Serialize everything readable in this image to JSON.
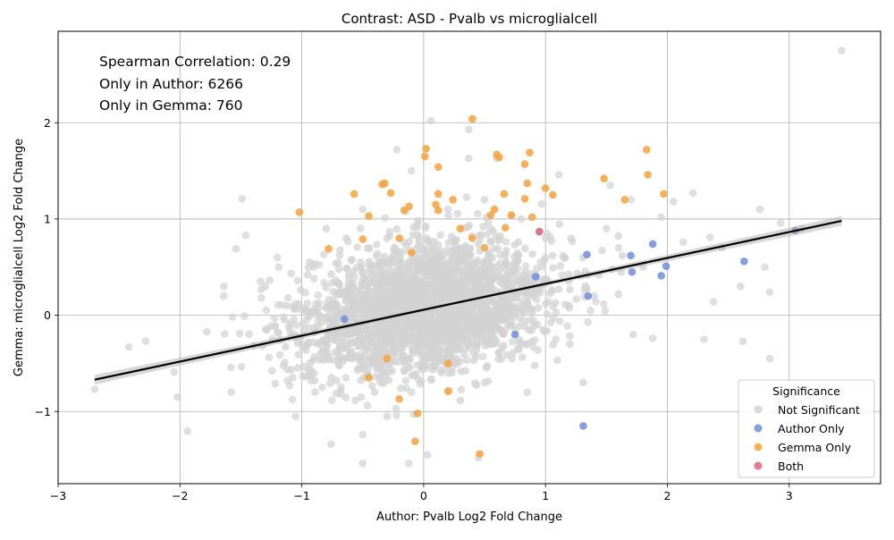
{
  "chart_data": {
    "type": "scatter",
    "title": "Contrast: ASD - Pvalb vs microglialcell",
    "xlabel": "Author: Pvalb Log2 Fold Change",
    "ylabel": "Gemma: microglialcell Log2 Fold Change",
    "xlim": [
      -3.0,
      3.75
    ],
    "ylim": [
      -1.75,
      2.95
    ],
    "xticks": [
      -3,
      -2,
      -1,
      0,
      1,
      2,
      3
    ],
    "yticks": [
      -1,
      0,
      1,
      2
    ],
    "grid": true,
    "annotations": [
      "Spearman Correlation: 0.29",
      "Only in Author: 6266",
      "Only in Gemma: 760"
    ],
    "legend": {
      "title": "Significance",
      "placement": "lower right",
      "entries": [
        {
          "name": "Not Significant",
          "color": "#d3d3d3"
        },
        {
          "name": "Author Only",
          "color": "#6f8fdc"
        },
        {
          "name": "Gemma Only",
          "color": "#f5a23b"
        },
        {
          "name": "Both",
          "color": "#e0627a"
        }
      ]
    },
    "regression": {
      "x": [
        -2.7,
        3.43
      ],
      "y": [
        -0.67,
        0.98
      ],
      "color": "#000000"
    },
    "series": [
      {
        "name": "Not Significant",
        "color": "#d3d3d3",
        "points": [
          [
            3.43,
            2.75
          ],
          [
            0.06,
            2.02
          ],
          [
            0.37,
            1.93
          ],
          [
            -0.22,
            1.72
          ],
          [
            0.37,
            1.63
          ],
          [
            -0.1,
            1.5
          ],
          [
            0.6,
            1.63
          ],
          [
            1.53,
            1.35
          ],
          [
            1.11,
            1.46
          ],
          [
            2.21,
            1.27
          ],
          [
            2.76,
            1.1
          ],
          [
            2.05,
            1.18
          ],
          [
            2.93,
            0.96
          ],
          [
            3.1,
            0.9
          ],
          [
            2.35,
            0.81
          ],
          [
            2.45,
            0.7
          ],
          [
            2.8,
            0.5
          ],
          [
            2.6,
            0.3
          ],
          [
            2.84,
            0.24
          ],
          [
            2.38,
            0.14
          ],
          [
            2.3,
            -0.25
          ],
          [
            2.62,
            -0.27
          ],
          [
            2.84,
            -0.45
          ],
          [
            1.88,
            -0.24
          ],
          [
            1.72,
            -0.2
          ],
          [
            1.31,
            -0.7
          ],
          [
            -1.49,
            1.21
          ],
          [
            -1.46,
            0.83
          ],
          [
            -1.54,
            0.69
          ],
          [
            -1.64,
            0.3
          ],
          [
            -1.64,
            0.2
          ],
          [
            -1.51,
            -0.19
          ],
          [
            -1.47,
            -0.01
          ],
          [
            -1.78,
            -0.17
          ],
          [
            -2.42,
            -0.33
          ],
          [
            -2.28,
            -0.27
          ],
          [
            -2.7,
            -0.77
          ],
          [
            -2.02,
            -0.85
          ],
          [
            -1.58,
            -0.8
          ],
          [
            -1.1,
            -0.73
          ],
          [
            -1.05,
            -1.05
          ],
          [
            -0.76,
            -1.34
          ],
          [
            -0.5,
            -1.24
          ],
          [
            -0.5,
            -1.54
          ],
          [
            -0.12,
            -1.54
          ],
          [
            0.03,
            -1.45
          ],
          [
            0.45,
            -1.48
          ],
          [
            0.85,
            -0.8
          ],
          [
            -0.3,
            -1.05
          ],
          [
            1.5,
            0.9
          ],
          [
            1.6,
            0.7
          ],
          [
            1.8,
            0.5
          ],
          [
            1.4,
            0.2
          ],
          [
            1.2,
            -0.3
          ],
          [
            -0.8,
            0.9
          ],
          [
            -1.2,
            0.6
          ],
          [
            -1.3,
            0.3
          ],
          [
            -1.0,
            -0.3
          ],
          [
            -0.9,
            -0.6
          ],
          [
            0.2,
            1.1
          ],
          [
            0.5,
            1.2
          ],
          [
            0.8,
            1.0
          ],
          [
            1.0,
            0.8
          ],
          [
            -0.5,
            1.1
          ],
          [
            -0.3,
            0.8
          ],
          [
            0.0,
            0.5
          ],
          [
            0.3,
            0.3
          ],
          [
            0.6,
            0.4
          ],
          [
            0.9,
            0.2
          ],
          [
            -0.2,
            0.2
          ],
          [
            -0.5,
            0.3
          ],
          [
            -0.7,
            0.0
          ],
          [
            0.1,
            -0.2
          ],
          [
            0.4,
            -0.3
          ],
          [
            0.7,
            -0.1
          ],
          [
            -0.4,
            -0.4
          ],
          [
            -0.6,
            -0.2
          ],
          [
            0.2,
            -0.6
          ],
          [
            0.5,
            -0.7
          ],
          [
            -0.1,
            -0.8
          ],
          [
            1.7,
            1.2
          ],
          [
            1.95,
            1.02
          ],
          [
            2.13,
            0.76
          ],
          [
            1.62,
            0.45
          ],
          [
            1.0,
            0.6
          ],
          [
            -1.05,
            0.12
          ],
          [
            -0.9,
            0.38
          ],
          [
            0.25,
            0.62
          ],
          [
            0.55,
            0.9
          ],
          [
            -0.2,
            -0.3
          ],
          [
            0.1,
            0.1
          ],
          [
            -0.35,
            0.55
          ],
          [
            0.75,
            0.55
          ]
        ]
      },
      {
        "name": "Author Only",
        "color": "#6f8fdc",
        "points": [
          [
            3.05,
            0.88
          ],
          [
            2.63,
            0.56
          ],
          [
            1.99,
            0.51
          ],
          [
            1.95,
            0.41
          ],
          [
            1.88,
            0.74
          ],
          [
            1.7,
            0.62
          ],
          [
            1.71,
            0.45
          ],
          [
            1.34,
            0.63
          ],
          [
            1.31,
            -1.15
          ],
          [
            1.35,
            0.2
          ],
          [
            0.92,
            0.4
          ],
          [
            0.75,
            -0.2
          ],
          [
            -0.65,
            -0.04
          ]
        ]
      },
      {
        "name": "Gemma Only",
        "color": "#f5a23b",
        "points": [
          [
            0.4,
            2.04
          ],
          [
            0.02,
            1.73
          ],
          [
            0.01,
            1.65
          ],
          [
            0.6,
            1.67
          ],
          [
            0.62,
            1.64
          ],
          [
            0.87,
            1.69
          ],
          [
            0.83,
            1.57
          ],
          [
            1.83,
            1.72
          ],
          [
            1.84,
            1.46
          ],
          [
            1.97,
            1.26
          ],
          [
            1.48,
            1.42
          ],
          [
            1.65,
            1.2
          ],
          [
            0.85,
            1.37
          ],
          [
            1.0,
            1.32
          ],
          [
            1.06,
            1.25
          ],
          [
            0.66,
            1.26
          ],
          [
            0.58,
            1.1
          ],
          [
            0.55,
            1.04
          ],
          [
            0.72,
            1.04
          ],
          [
            0.83,
            1.21
          ],
          [
            0.89,
            1.02
          ],
          [
            0.67,
            0.91
          ],
          [
            0.12,
            1.54
          ],
          [
            0.12,
            1.26
          ],
          [
            0.1,
            1.15
          ],
          [
            0.12,
            1.09
          ],
          [
            0.24,
            1.2
          ],
          [
            -0.32,
            1.37
          ],
          [
            -0.34,
            1.36
          ],
          [
            -0.27,
            1.27
          ],
          [
            -0.57,
            1.26
          ],
          [
            -1.02,
            1.07
          ],
          [
            -0.12,
            1.13
          ],
          [
            -0.16,
            1.09
          ],
          [
            -0.45,
            1.03
          ],
          [
            -0.5,
            0.79
          ],
          [
            -0.78,
            0.69
          ],
          [
            0.3,
            0.9
          ],
          [
            0.4,
            0.8
          ],
          [
            0.5,
            0.7
          ],
          [
            -0.2,
            0.8
          ],
          [
            -0.1,
            0.65
          ],
          [
            0.2,
            -0.79
          ],
          [
            -0.2,
            -0.87
          ],
          [
            -0.05,
            -1.02
          ],
          [
            -0.07,
            -1.31
          ],
          [
            0.46,
            -1.44
          ],
          [
            -0.45,
            -0.65
          ],
          [
            -0.3,
            -0.45
          ],
          [
            0.2,
            -0.5
          ]
        ]
      },
      {
        "name": "Both",
        "color": "#e0627a",
        "points": [
          [
            0.95,
            0.87
          ]
        ]
      }
    ]
  }
}
